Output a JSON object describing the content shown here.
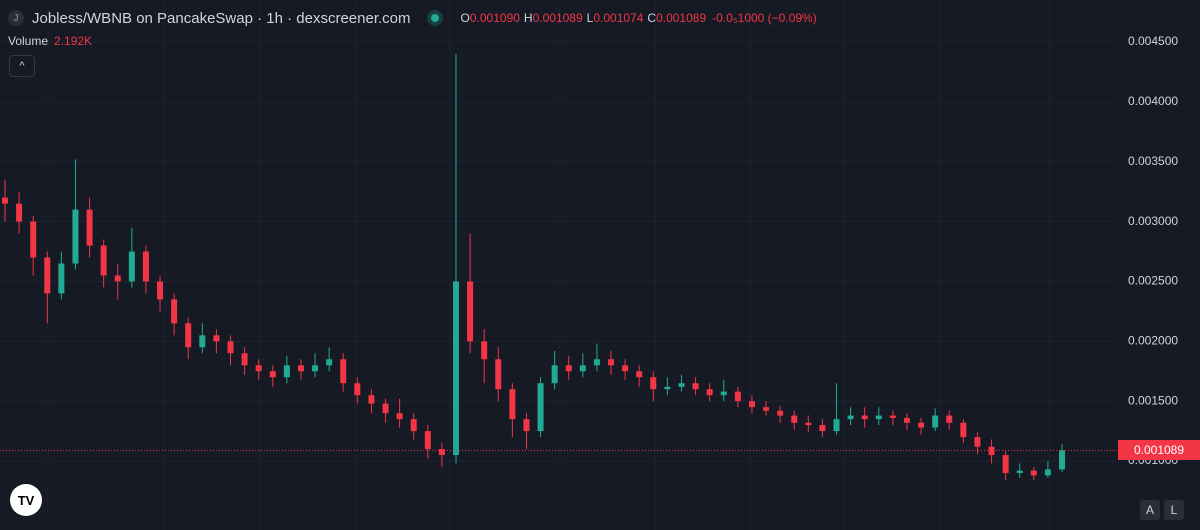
{
  "chart_data": {
    "type": "candlestick",
    "title": "Jobless/WBNB on PancakeSwap · 1h · dexscreener.com",
    "icon_letter": "J",
    "ohlc_legend": [
      {
        "key": "O",
        "value": 0.00109,
        "label": "0.001090"
      },
      {
        "key": "H",
        "value": 0.001089,
        "label": "0.001089"
      },
      {
        "key": "L",
        "value": 0.001074,
        "label": "0.001074"
      },
      {
        "key": "C",
        "value": 0.001089,
        "label": "0.001089"
      }
    ],
    "change_label": "-0.0₅1000 (−0.09%)",
    "volume": {
      "name": "Volume",
      "value": 2192,
      "label": "2.192K"
    },
    "buttons": [
      "A",
      "L"
    ],
    "up_color": "#22ab94",
    "down_color": "#f23645",
    "open": [
      0.0032,
      0.00315,
      0.003,
      0.0027,
      0.0024,
      0.00265,
      0.0031,
      0.0028,
      0.00255,
      0.0025,
      0.00275,
      0.0025,
      0.00235,
      0.00215,
      0.00195,
      0.00205,
      0.002,
      0.0019,
      0.0018,
      0.00175,
      0.0017,
      0.0018,
      0.00175,
      0.0018,
      0.00185,
      0.00165,
      0.00155,
      0.00148,
      0.0014,
      0.00135,
      0.00125,
      0.0011,
      0.00105,
      0.0025,
      0.002,
      0.00185,
      0.0016,
      0.00135,
      0.00125,
      0.00165,
      0.0018,
      0.00175,
      0.0018,
      0.00185,
      0.0018,
      0.00175,
      0.0017,
      0.0016,
      0.00162,
      0.00165,
      0.0016,
      0.00155,
      0.00158,
      0.0015,
      0.00145,
      0.00142,
      0.00138,
      0.00132,
      0.0013,
      0.00125,
      0.00135,
      0.00138,
      0.00135,
      0.00138,
      0.00136,
      0.00132,
      0.00128,
      0.00138,
      0.00132,
      0.0012,
      0.00112,
      0.00105,
      0.0009,
      0.00092,
      0.00088,
      0.00093
    ],
    "high": [
      0.00335,
      0.00325,
      0.00305,
      0.00275,
      0.00275,
      0.00352,
      0.0032,
      0.00285,
      0.00265,
      0.00295,
      0.0028,
      0.00255,
      0.0024,
      0.0022,
      0.00215,
      0.0021,
      0.00205,
      0.00195,
      0.00185,
      0.0018,
      0.00188,
      0.00185,
      0.0019,
      0.00195,
      0.0019,
      0.0017,
      0.0016,
      0.00152,
      0.00152,
      0.0014,
      0.0013,
      0.00115,
      0.0044,
      0.0029,
      0.0021,
      0.00195,
      0.00165,
      0.0014,
      0.0017,
      0.00192,
      0.00188,
      0.0019,
      0.00198,
      0.00192,
      0.00185,
      0.0018,
      0.00175,
      0.0017,
      0.00172,
      0.0017,
      0.00165,
      0.00168,
      0.00162,
      0.00155,
      0.0015,
      0.00146,
      0.00142,
      0.00138,
      0.00135,
      0.00165,
      0.00145,
      0.00145,
      0.00145,
      0.00142,
      0.0014,
      0.00136,
      0.00144,
      0.00142,
      0.00135,
      0.00124,
      0.00118,
      0.00108,
      0.00098,
      0.00095,
      0.001,
      0.00114
    ],
    "low": [
      0.003,
      0.0029,
      0.00255,
      0.00215,
      0.00235,
      0.0026,
      0.0027,
      0.00245,
      0.00235,
      0.00245,
      0.0024,
      0.00225,
      0.00205,
      0.00185,
      0.0019,
      0.0019,
      0.0018,
      0.00172,
      0.00168,
      0.00162,
      0.00165,
      0.00168,
      0.0017,
      0.00175,
      0.00158,
      0.00148,
      0.0014,
      0.00132,
      0.00128,
      0.00118,
      0.00102,
      0.00095,
      0.00098,
      0.0019,
      0.00165,
      0.0015,
      0.0012,
      0.0011,
      0.0012,
      0.0016,
      0.00168,
      0.0017,
      0.00175,
      0.00172,
      0.00168,
      0.00162,
      0.0015,
      0.00155,
      0.00158,
      0.00155,
      0.0015,
      0.0015,
      0.00145,
      0.0014,
      0.00138,
      0.00132,
      0.00126,
      0.00124,
      0.0012,
      0.00122,
      0.0013,
      0.00128,
      0.0013,
      0.0013,
      0.00126,
      0.00122,
      0.00125,
      0.00126,
      0.00115,
      0.00106,
      0.00098,
      0.00084,
      0.00086,
      0.00084,
      0.00086,
      0.00091
    ],
    "close": [
      0.00315,
      0.003,
      0.0027,
      0.0024,
      0.00265,
      0.0031,
      0.0028,
      0.00255,
      0.0025,
      0.00275,
      0.0025,
      0.00235,
      0.00215,
      0.00195,
      0.00205,
      0.002,
      0.0019,
      0.0018,
      0.00175,
      0.0017,
      0.0018,
      0.00175,
      0.0018,
      0.00185,
      0.00165,
      0.00155,
      0.00148,
      0.0014,
      0.00135,
      0.00125,
      0.0011,
      0.00105,
      0.0025,
      0.002,
      0.00185,
      0.0016,
      0.00135,
      0.00125,
      0.00165,
      0.0018,
      0.00175,
      0.0018,
      0.00185,
      0.0018,
      0.00175,
      0.0017,
      0.0016,
      0.00162,
      0.00165,
      0.0016,
      0.00155,
      0.00158,
      0.0015,
      0.00145,
      0.00142,
      0.00138,
      0.00132,
      0.0013,
      0.00125,
      0.00135,
      0.00138,
      0.00135,
      0.00138,
      0.00136,
      0.00132,
      0.00128,
      0.00138,
      0.00132,
      0.0012,
      0.00112,
      0.00105,
      0.0009,
      0.00092,
      0.00088,
      0.00093,
      0.00109
    ],
    "ylim": [
      0.000424,
      0.004851
    ],
    "yticks": [
      {
        "value": 0.001,
        "label": "0.001000"
      },
      {
        "value": 0.0015,
        "label": "0.001500"
      },
      {
        "value": 0.002,
        "label": "0.002000"
      },
      {
        "value": 0.0025,
        "label": "0.002500"
      },
      {
        "value": 0.003,
        "label": "0.003000"
      },
      {
        "value": 0.0035,
        "label": "0.003500"
      },
      {
        "value": 0.004,
        "label": "0.004000"
      },
      {
        "value": 0.0045,
        "label": "0.004500"
      }
    ],
    "grid": true,
    "last_price": {
      "value": 0.001089,
      "label": "0.001089"
    }
  }
}
